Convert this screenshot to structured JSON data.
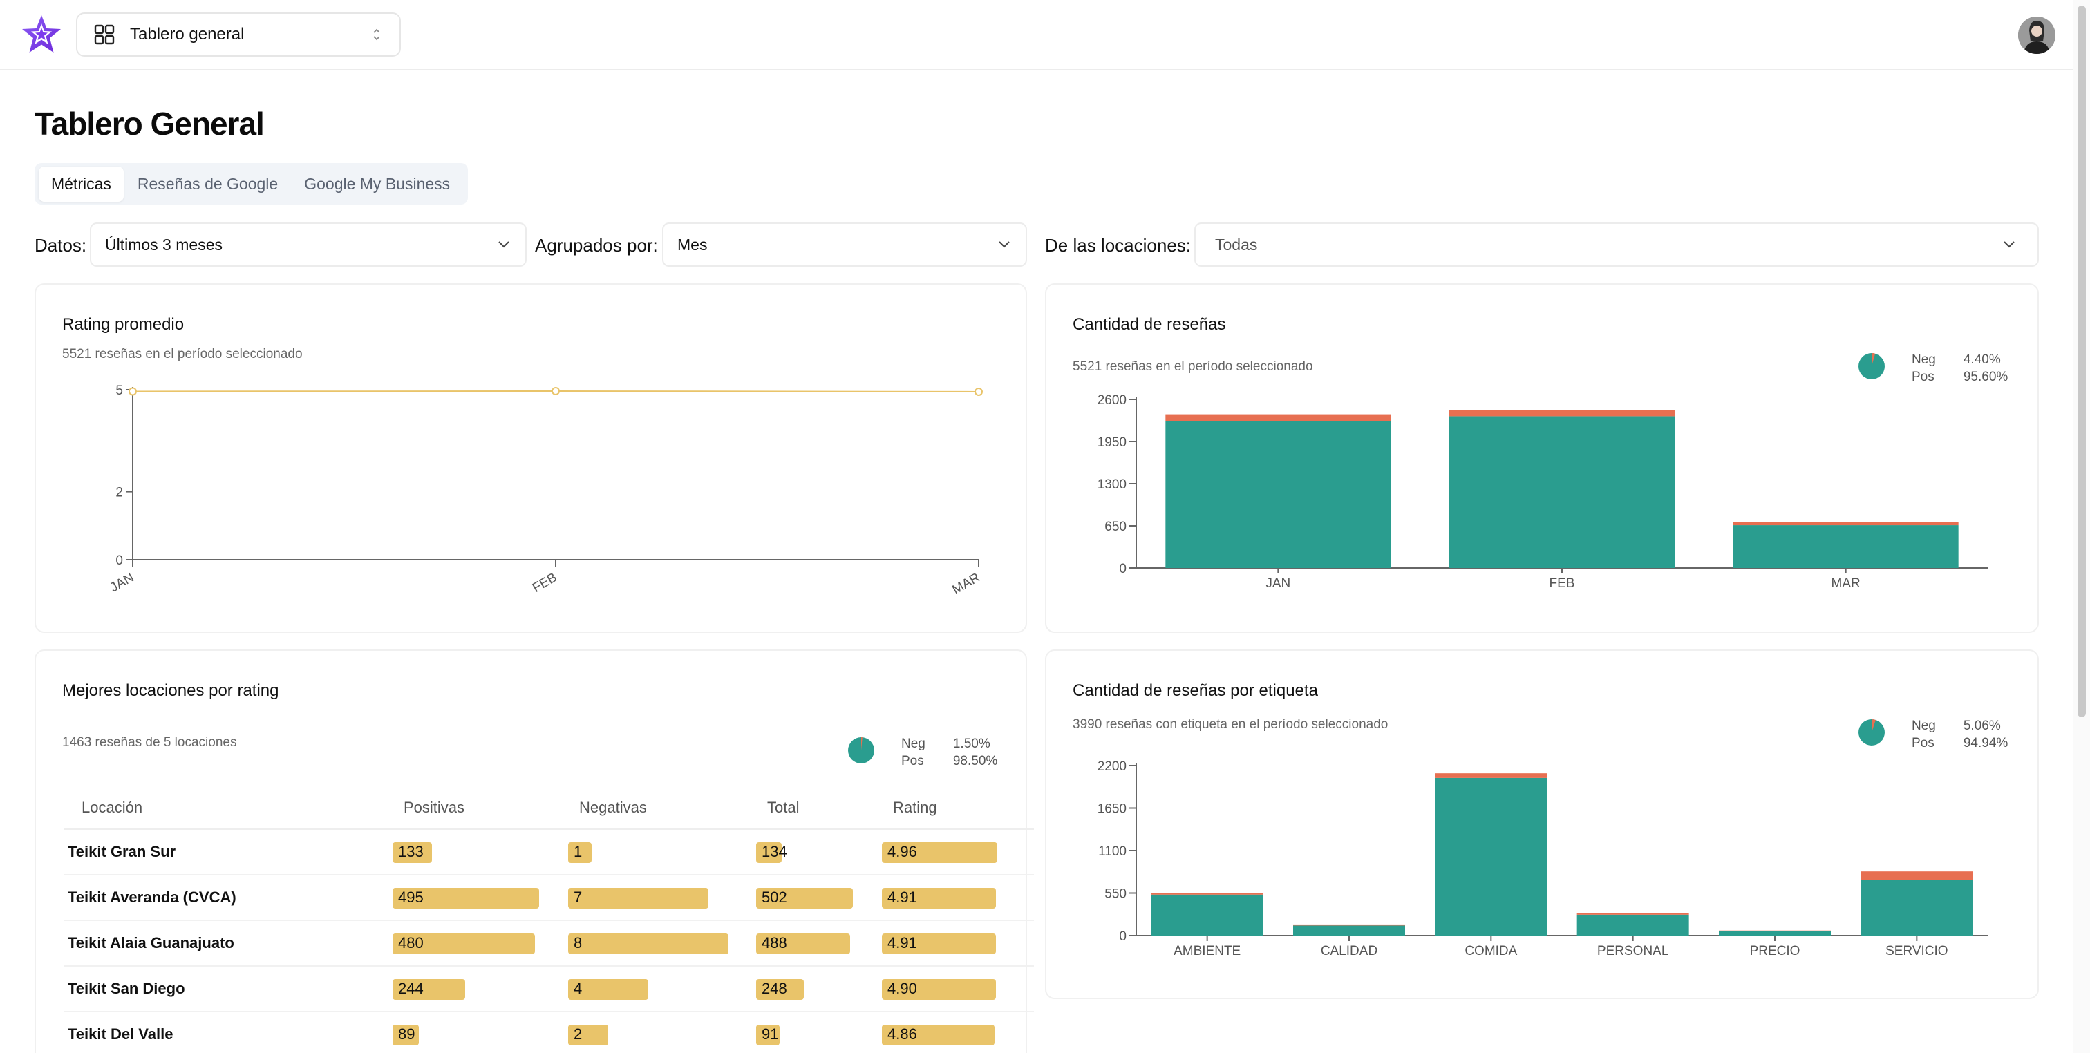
{
  "header": {
    "workspace_label": "Tablero general"
  },
  "page": {
    "title": "Tablero General"
  },
  "tabs": [
    {
      "label": "Métricas",
      "active": true
    },
    {
      "label": "Reseñas de Google",
      "active": false
    },
    {
      "label": "Google My Business",
      "active": false
    }
  ],
  "filters": {
    "datos_label": "Datos:",
    "datos_value": "Últimos 3 meses",
    "agrupados_label": "Agrupados por:",
    "agrupados_value": "Mes",
    "locaciones_label": "De las locaciones:",
    "locaciones_value": "Todas"
  },
  "colors": {
    "positive": "#2a9d8f",
    "negative": "#e76f51",
    "line": "#e9c46a",
    "bar_cell": "#e9c46a"
  },
  "rating_card": {
    "title": "Rating promedio",
    "subtitle": "5521 reseñas en el período seleccionado",
    "chart_data": {
      "type": "line",
      "x": [
        "JAN",
        "FEB",
        "MAR"
      ],
      "series": [
        {
          "values": [
            4.95,
            4.96,
            4.94
          ]
        }
      ],
      "yticks": [
        "0",
        "2",
        "5"
      ],
      "ylim": [
        0,
        5
      ]
    }
  },
  "reviews_card": {
    "title": "Cantidad de reseñas",
    "subtitle": "5521 reseñas en el período seleccionado",
    "legend": {
      "neg_label": "Neg",
      "pos_label": "Pos",
      "neg_pct": "4.40%",
      "pos_pct": "95.60%",
      "neg_fraction": 0.044
    },
    "chart_data": {
      "type": "bar",
      "stacked": true,
      "categories": [
        "JAN",
        "FEB",
        "MAR"
      ],
      "series": [
        {
          "name": "Pos",
          "values": [
            2260,
            2340,
            660
          ]
        },
        {
          "name": "Neg",
          "values": [
            110,
            90,
            50
          ]
        }
      ],
      "yticks": [
        "0",
        "650",
        "1300",
        "1950",
        "2600"
      ],
      "ylim": [
        0,
        2600
      ]
    }
  },
  "locations_card": {
    "title": "Mejores locaciones por rating",
    "subtitle": "1463 reseñas de 5 locaciones",
    "legend": {
      "neg_label": "Neg",
      "pos_label": "Pos",
      "neg_pct": "1.50%",
      "pos_pct": "98.50%",
      "neg_fraction": 0.015
    },
    "columns": [
      "Locación",
      "Positivas",
      "Negativas",
      "Total",
      "Rating"
    ],
    "rows": [
      {
        "name": "Teikit Gran Sur",
        "pos": "133",
        "neg": "1",
        "total": "134",
        "rating": "4.96"
      },
      {
        "name": "Teikit Averanda (CVCA)",
        "pos": "495",
        "neg": "7",
        "total": "502",
        "rating": "4.91"
      },
      {
        "name": "Teikit Alaia Guanajuato",
        "pos": "480",
        "neg": "8",
        "total": "488",
        "rating": "4.91"
      },
      {
        "name": "Teikit San Diego",
        "pos": "244",
        "neg": "4",
        "total": "248",
        "rating": "4.90"
      },
      {
        "name": "Teikit Del Valle",
        "pos": "89",
        "neg": "2",
        "total": "91",
        "rating": "4.86"
      }
    ]
  },
  "tags_card": {
    "title": "Cantidad de reseñas por etiqueta",
    "subtitle": "3990 reseñas con etiqueta en el período seleccionado",
    "legend": {
      "neg_label": "Neg",
      "pos_label": "Pos",
      "neg_pct": "5.06%",
      "pos_pct": "94.94%",
      "neg_fraction": 0.0506
    },
    "chart_data": {
      "type": "bar",
      "stacked": true,
      "categories": [
        "AMBIENTE",
        "CALIDAD",
        "COMIDA",
        "PERSONAL",
        "PRECIO",
        "SERVICIO"
      ],
      "series": [
        {
          "name": "Pos",
          "values": [
            530,
            130,
            2040,
            270,
            60,
            720
          ]
        },
        {
          "name": "Neg",
          "values": [
            20,
            5,
            60,
            20,
            5,
            110
          ]
        }
      ],
      "yticks": [
        "0",
        "550",
        "1100",
        "1650",
        "2200"
      ],
      "ylim": [
        0,
        2200
      ]
    }
  }
}
